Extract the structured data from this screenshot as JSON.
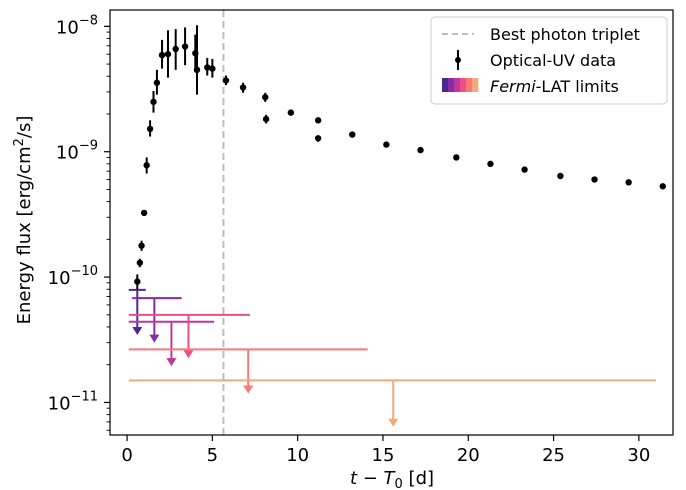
{
  "chart_data": {
    "type": "scatter",
    "xlabel": "t − T0 [d]",
    "ylabel": "Energy flux [erg/cm2/s]",
    "x_scale": "linear",
    "y_scale": "log",
    "xlim": [
      -1.0,
      32.0
    ],
    "ylim": [
      5.5e-12,
      1.35e-08
    ],
    "x_ticks": [
      0,
      5,
      10,
      15,
      20,
      25,
      30
    ],
    "x_tick_labels": [
      "0",
      "5",
      "10",
      "15",
      "20",
      "25",
      "30"
    ],
    "y_ticks": [
      1e-11,
      1e-10,
      1e-09,
      1e-08
    ],
    "y_tick_labels": [
      {
        "base": "10",
        "exp": "−11"
      },
      {
        "base": "10",
        "exp": "−10"
      },
      {
        "base": "10",
        "exp": "−9"
      },
      {
        "base": "10",
        "exp": "−8"
      }
    ],
    "legend_position": "top-right",
    "legend": {
      "triplet": "Best photon triplet",
      "optical": "Optical-UV data",
      "fermi_italic": "Fermi",
      "fermi_rest": "-LAT limits"
    },
    "vertical_line": {
      "x": 5.65,
      "color": "#bdbdbd",
      "style": "dashed",
      "series": "Best photon triplet"
    },
    "series": [
      {
        "name": "Optical-UV data",
        "color": "#000000",
        "points": [
          {
            "x": 0.6,
            "y": 9.2e-11,
            "ylo": 8e-11,
            "yhi": 1.05e-10
          },
          {
            "x": 0.75,
            "y": 1.3e-10,
            "ylo": 1.2e-10,
            "yhi": 1.4e-10
          },
          {
            "x": 0.85,
            "y": 1.78e-10,
            "ylo": 1.62e-10,
            "yhi": 1.95e-10
          },
          {
            "x": 1.0,
            "y": 3.25e-10,
            "ylo": 3.1e-10,
            "yhi": 3.4e-10
          },
          {
            "x": 1.15,
            "y": 7.8e-10,
            "ylo": 6.7e-10,
            "yhi": 9e-10
          },
          {
            "x": 1.35,
            "y": 1.52e-09,
            "ylo": 1.32e-09,
            "yhi": 1.78e-09
          },
          {
            "x": 1.55,
            "y": 2.5e-09,
            "ylo": 2.05e-09,
            "yhi": 3.05e-09
          },
          {
            "x": 1.75,
            "y": 3.55e-09,
            "ylo": 2.85e-09,
            "yhi": 4.5e-09
          },
          {
            "x": 2.05,
            "y": 5.9e-09,
            "ylo": 4.6e-09,
            "yhi": 7.8e-09
          },
          {
            "x": 2.4,
            "y": 6e-09,
            "ylo": 3.9e-09,
            "yhi": 9.3e-09
          },
          {
            "x": 2.85,
            "y": 6.6e-09,
            "ylo": 4.5e-09,
            "yhi": 9.5e-09
          },
          {
            "x": 3.4,
            "y": 6.9e-09,
            "ylo": 4.9e-09,
            "yhi": 9.8e-09
          },
          {
            "x": 4.0,
            "y": 6.1e-09,
            "ylo": 4.3e-09,
            "yhi": 8.6e-09
          },
          {
            "x": 4.1,
            "y": 4.5e-09,
            "ylo": 2.85e-09,
            "yhi": 1.02e-08
          },
          {
            "x": 4.7,
            "y": 4.7e-09,
            "ylo": 4.05e-09,
            "yhi": 5.6e-09
          },
          {
            "x": 5.0,
            "y": 4.6e-09,
            "ylo": 3.9e-09,
            "yhi": 5.5e-09
          },
          {
            "x": 5.8,
            "y": 3.7e-09,
            "ylo": 3.4e-09,
            "yhi": 4.05e-09
          },
          {
            "x": 6.8,
            "y": 3.25e-09,
            "ylo": 2.95e-09,
            "yhi": 3.55e-09
          },
          {
            "x": 8.1,
            "y": 2.72e-09,
            "ylo": 2.5e-09,
            "yhi": 2.95e-09
          },
          {
            "x": 8.15,
            "y": 1.82e-09,
            "ylo": 1.68e-09,
            "yhi": 1.97e-09
          },
          {
            "x": 9.6,
            "y": 2.05e-09,
            "ylo": 1.99e-09,
            "yhi": 2.1e-09
          },
          {
            "x": 11.2,
            "y": 1.78e-09,
            "ylo": 1.74e-09,
            "yhi": 1.82e-09
          },
          {
            "x": 11.2,
            "y": 1.28e-09,
            "ylo": 1.2e-09,
            "yhi": 1.35e-09
          },
          {
            "x": 13.2,
            "y": 1.37e-09,
            "ylo": 1.34e-09,
            "yhi": 1.4e-09
          },
          {
            "x": 15.2,
            "y": 1.14e-09,
            "ylo": 1.11e-09,
            "yhi": 1.17e-09
          },
          {
            "x": 17.2,
            "y": 1.03e-09,
            "ylo": 1e-09,
            "yhi": 1.06e-09
          },
          {
            "x": 19.3,
            "y": 9e-10,
            "ylo": 8.8e-10,
            "yhi": 9.2e-10
          },
          {
            "x": 21.3,
            "y": 8e-10,
            "ylo": 7.8e-10,
            "yhi": 8.2e-10
          },
          {
            "x": 23.3,
            "y": 7.2e-10,
            "ylo": 7e-10,
            "yhi": 7.4e-10
          },
          {
            "x": 25.4,
            "y": 6.4e-10,
            "ylo": 6.2e-10,
            "yhi": 6.6e-10
          },
          {
            "x": 27.4,
            "y": 6e-10,
            "ylo": 5.8e-10,
            "yhi": 6.2e-10
          },
          {
            "x": 29.4,
            "y": 5.7e-10,
            "ylo": 5.5e-10,
            "yhi": 5.9e-10
          },
          {
            "x": 31.4,
            "y": 5.3e-10,
            "ylo": 5.1e-10,
            "yhi": 5.5e-10
          }
        ]
      },
      {
        "name": "Fermi-LAT limits",
        "upper_limits": [
          {
            "x_start": 0.1,
            "x_end": 1.1,
            "y": 7.9e-11,
            "arrow_x": 0.6,
            "arrow_to": 3.45e-11,
            "color": "#4b2991"
          },
          {
            "x_start": 0.3,
            "x_end": 3.2,
            "y": 6.8e-11,
            "arrow_x": 1.6,
            "arrow_to": 3e-11,
            "color": "#872ca2"
          },
          {
            "x_start": 0.1,
            "x_end": 5.1,
            "y": 4.4e-11,
            "arrow_x": 2.6,
            "arrow_to": 1.95e-11,
            "color": "#c0369d"
          },
          {
            "x_start": 0.1,
            "x_end": 7.2,
            "y": 5e-11,
            "arrow_x": 3.6,
            "arrow_to": 2.25e-11,
            "color": "#ea4f88"
          },
          {
            "x_start": 0.1,
            "x_end": 14.1,
            "y": 2.65e-11,
            "arrow_x": 7.1,
            "arrow_to": 1.18e-11,
            "color": "#fa7876"
          },
          {
            "x_start": 0.1,
            "x_end": 31.0,
            "y": 1.5e-11,
            "arrow_x": 15.6,
            "arrow_to": 6.4e-12,
            "color": "#f6a97a"
          }
        ]
      }
    ]
  }
}
